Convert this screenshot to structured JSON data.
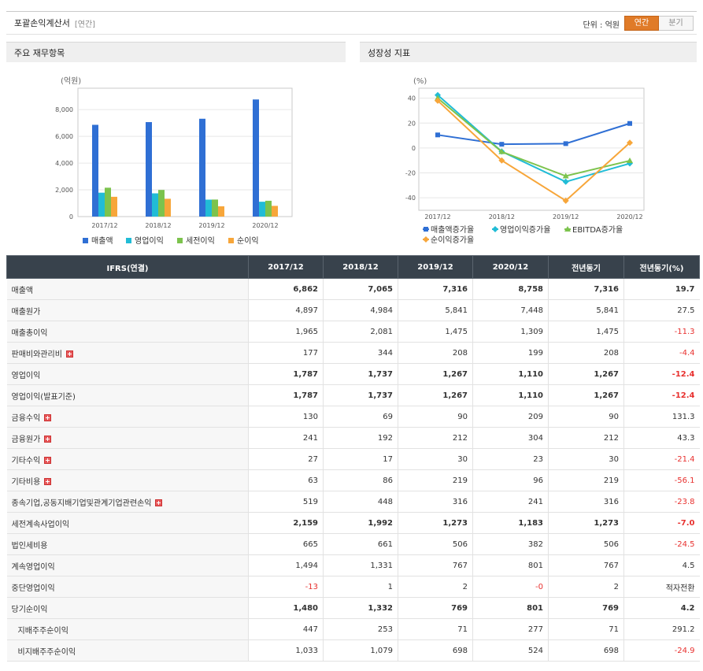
{
  "header": {
    "title": "포괄손익계산서",
    "sub": "[연간]",
    "unit_label": "단위 : 억원",
    "toggle_annual": "연간",
    "toggle_quarter": "분기"
  },
  "left_panel": {
    "title": "주요 재무항목"
  },
  "right_panel": {
    "title": "성장성 지표"
  },
  "chart_data": [
    {
      "type": "bar",
      "ylabel": "(억원)",
      "categories": [
        "2017/12",
        "2018/12",
        "2019/12",
        "2020/12"
      ],
      "ylim": [
        0,
        9600
      ],
      "yticks": [
        0,
        2000,
        4000,
        6000,
        8000
      ],
      "ytick_labels": [
        "0",
        "2,000",
        "4,000",
        "6,000",
        "8,000"
      ],
      "grid": true,
      "legend_position": "bottom",
      "series": [
        {
          "name": "매출액",
          "color": "#2f6fd4",
          "values": [
            6862,
            7065,
            7316,
            8758
          ]
        },
        {
          "name": "영업이익",
          "color": "#21bcd6",
          "values": [
            1787,
            1737,
            1267,
            1110
          ]
        },
        {
          "name": "세전이익",
          "color": "#7cc34d",
          "values": [
            2159,
            1992,
            1273,
            1183
          ]
        },
        {
          "name": "순이익",
          "color": "#f7a63a",
          "values": [
            1480,
            1332,
            769,
            801
          ]
        }
      ]
    },
    {
      "type": "line",
      "ylabel": "(%)",
      "categories": [
        "2017/12",
        "2018/12",
        "2019/12",
        "2020/12"
      ],
      "ylim": [
        -50,
        48
      ],
      "yticks": [
        -40,
        -20,
        0,
        20,
        40
      ],
      "ytick_labels": [
        "-40",
        "-20",
        "0",
        "20",
        "40"
      ],
      "grid": true,
      "legend_position": "bottom",
      "series": [
        {
          "name": "매출액증가율",
          "color": "#2f6fd4",
          "marker": "square",
          "values": [
            10.5,
            3.0,
            3.5,
            19.7
          ]
        },
        {
          "name": "영업이익증가율",
          "color": "#21bcd6",
          "marker": "diamond",
          "values": [
            42.5,
            -2.8,
            -27.1,
            -12.4
          ]
        },
        {
          "name": "EBITDA증가율",
          "color": "#7cc34d",
          "marker": "triangle",
          "values": [
            40.0,
            -3.0,
            -22.5,
            -10.2
          ]
        },
        {
          "name": "순이익증가율",
          "color": "#f7a63a",
          "marker": "diamond",
          "values": [
            38.0,
            -10.0,
            -42.3,
            4.2
          ]
        }
      ]
    }
  ],
  "table": {
    "headers": [
      "IFRS(연결)",
      "2017/12",
      "2018/12",
      "2019/12",
      "2020/12",
      "전년동기",
      "전년동기(%)"
    ],
    "rows": [
      {
        "label": "매출액",
        "bold": true,
        "values": [
          "6,862",
          "7,065",
          "7,316",
          "8,758",
          "7,316",
          "19.7"
        ]
      },
      {
        "label": "매출원가",
        "values": [
          "4,897",
          "4,984",
          "5,841",
          "7,448",
          "5,841",
          "27.5"
        ]
      },
      {
        "label": "매출총이익",
        "values": [
          "1,965",
          "2,081",
          "1,475",
          "1,309",
          "1,475",
          "-11.3"
        ]
      },
      {
        "label": "판매비와관리비",
        "expand": true,
        "values": [
          "177",
          "344",
          "208",
          "199",
          "208",
          "-4.4"
        ]
      },
      {
        "label": "영업이익",
        "bold": true,
        "values": [
          "1,787",
          "1,737",
          "1,267",
          "1,110",
          "1,267",
          "-12.4"
        ]
      },
      {
        "label": "영업이익(발표기준)",
        "bold": true,
        "values": [
          "1,787",
          "1,737",
          "1,267",
          "1,110",
          "1,267",
          "-12.4"
        ]
      },
      {
        "label": "금융수익",
        "expand": true,
        "values": [
          "130",
          "69",
          "90",
          "209",
          "90",
          "131.3"
        ]
      },
      {
        "label": "금융원가",
        "expand": true,
        "values": [
          "241",
          "192",
          "212",
          "304",
          "212",
          "43.3"
        ]
      },
      {
        "label": "기타수익",
        "expand": true,
        "values": [
          "27",
          "17",
          "30",
          "23",
          "30",
          "-21.4"
        ]
      },
      {
        "label": "기타비용",
        "expand": true,
        "values": [
          "63",
          "86",
          "219",
          "96",
          "219",
          "-56.1"
        ]
      },
      {
        "label": "종속기업,공동지배기업및관계기업관련손익",
        "expand": true,
        "values": [
          "519",
          "448",
          "316",
          "241",
          "316",
          "-23.8"
        ]
      },
      {
        "label": "세전계속사업이익",
        "bold": true,
        "values": [
          "2,159",
          "1,992",
          "1,273",
          "1,183",
          "1,273",
          "-7.0"
        ]
      },
      {
        "label": "법인세비용",
        "values": [
          "665",
          "661",
          "506",
          "382",
          "506",
          "-24.5"
        ]
      },
      {
        "label": "계속영업이익",
        "values": [
          "1,494",
          "1,331",
          "767",
          "801",
          "767",
          "4.5"
        ]
      },
      {
        "label": "중단영업이익",
        "values": [
          "-13",
          "1",
          "2",
          "-0",
          "2",
          "적자전환"
        ]
      },
      {
        "label": "당기순이익",
        "bold": true,
        "values": [
          "1,480",
          "1,332",
          "769",
          "801",
          "769",
          "4.2"
        ]
      },
      {
        "label": "지배주주순이익",
        "indent": true,
        "values": [
          "447",
          "253",
          "71",
          "277",
          "71",
          "291.2"
        ]
      },
      {
        "label": "비지배주주순이익",
        "indent": true,
        "values": [
          "1,033",
          "1,079",
          "698",
          "524",
          "698",
          "-24.9"
        ]
      }
    ]
  }
}
